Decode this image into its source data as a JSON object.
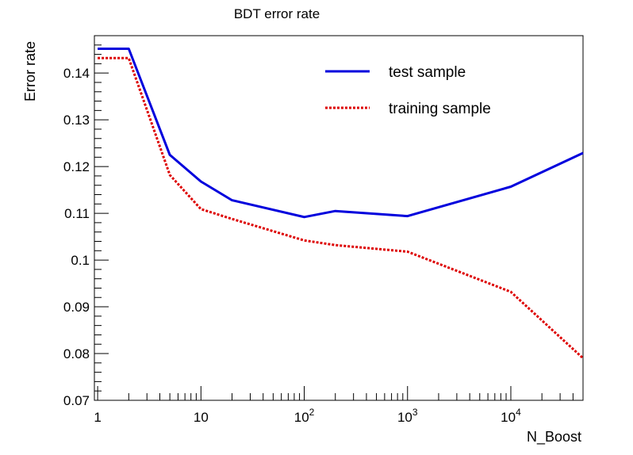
{
  "chart_data": {
    "type": "line",
    "title": "BDT error rate",
    "xlabel": "N_Boost",
    "ylabel": "Error rate",
    "x_scale": "log",
    "xlim": [
      0.93,
      50000
    ],
    "ylim": [
      0.07,
      0.148
    ],
    "yticks": [
      "0.07",
      "0.08",
      "0.09",
      "0.1",
      "0.11",
      "0.12",
      "0.13",
      "0.14"
    ],
    "xticks": [
      {
        "value": 1,
        "base": "1",
        "exp": ""
      },
      {
        "value": 10,
        "base": "10",
        "exp": ""
      },
      {
        "value": 100,
        "base": "10",
        "exp": "2"
      },
      {
        "value": 1000,
        "base": "10",
        "exp": "3"
      },
      {
        "value": 10000,
        "base": "10",
        "exp": "4"
      }
    ],
    "legend_position": "top-right",
    "series": [
      {
        "name": "test sample",
        "color": "#0000dd",
        "style": "solid",
        "points": [
          [
            1,
            0.1452
          ],
          [
            2,
            0.1452
          ],
          [
            5,
            0.1225
          ],
          [
            10,
            0.1168
          ],
          [
            20,
            0.1128
          ],
          [
            100,
            0.1092
          ],
          [
            200,
            0.1105
          ],
          [
            1000,
            0.1094
          ],
          [
            10000,
            0.1157
          ],
          [
            50000,
            0.1229
          ]
        ]
      },
      {
        "name": "training sample",
        "color": "#dd0000",
        "style": "dotted",
        "points": [
          [
            1,
            0.1432
          ],
          [
            2,
            0.1432
          ],
          [
            5,
            0.1182
          ],
          [
            10,
            0.1109
          ],
          [
            20,
            0.1088
          ],
          [
            100,
            0.1042
          ],
          [
            200,
            0.1032
          ],
          [
            1000,
            0.1018
          ],
          [
            10000,
            0.0932
          ],
          [
            50000,
            0.079
          ]
        ]
      }
    ]
  }
}
